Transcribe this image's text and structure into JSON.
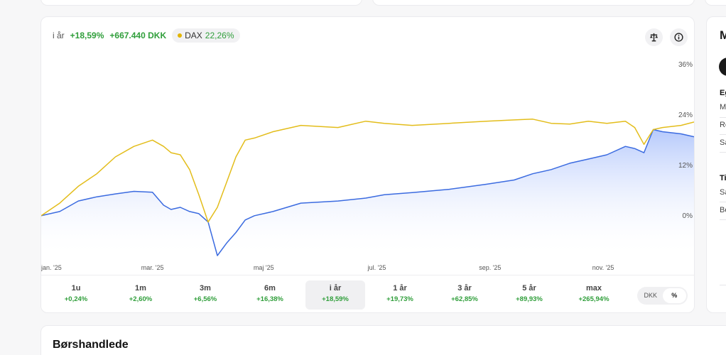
{
  "summary": {
    "period": "i år",
    "return_pct": "+18,59%",
    "return_abs": "+667.440 DKK",
    "benchmark_name": "DAX",
    "benchmark_return": "22,26%"
  },
  "chart_data": {
    "type": "line",
    "ylim": [
      -10,
      38
    ],
    "yticks": [
      "36%",
      "24%",
      "12%",
      "0%"
    ],
    "ytick_values": [
      36,
      24,
      12,
      0
    ],
    "xticks": [
      "jan. '25",
      "mar. '25",
      "maj '25",
      "jul. '25",
      "sep. '25",
      "nov. '25"
    ],
    "xtick_days": [
      0,
      60,
      120,
      181,
      242,
      303
    ],
    "x_days": [
      0,
      10,
      20,
      30,
      40,
      50,
      60,
      66,
      70,
      75,
      80,
      85,
      90,
      95,
      100,
      105,
      110,
      115,
      125,
      140,
      160,
      175,
      185,
      200,
      220,
      240,
      255,
      265,
      275,
      285,
      295,
      305,
      315,
      320,
      325,
      330,
      335,
      345,
      352
    ],
    "series": [
      {
        "name": "",
        "color": "#3b6be0",
        "values": [
          0.0,
          1.0,
          3.5,
          4.5,
          5.2,
          5.8,
          5.6,
          2.5,
          1.5,
          2.0,
          1.0,
          0.5,
          -1.5,
          -9.5,
          -6.5,
          -4.0,
          -1.0,
          0.0,
          1.0,
          3.0,
          3.5,
          4.2,
          5.0,
          5.5,
          6.3,
          7.5,
          8.5,
          10.0,
          11.0,
          12.5,
          13.5,
          14.5,
          16.5,
          16.0,
          15.0,
          20.5,
          20.0,
          19.5,
          18.8
        ]
      },
      {
        "name": "DAX",
        "color": "#e3bd1b",
        "values": [
          0.0,
          3.0,
          7.0,
          10.0,
          14.0,
          16.5,
          18.0,
          16.5,
          15.0,
          14.5,
          11.0,
          5.0,
          -1.5,
          2.0,
          8.0,
          14.0,
          18.0,
          18.5,
          20.0,
          21.5,
          21.0,
          22.5,
          22.0,
          21.5,
          22.0,
          22.5,
          22.8,
          23.0,
          22.0,
          21.8,
          22.5,
          22.0,
          22.5,
          21.0,
          17.0,
          20.5,
          21.0,
          21.5,
          22.3
        ]
      }
    ]
  },
  "periods": [
    {
      "label": "1u",
      "return": "+0,24%"
    },
    {
      "label": "1m",
      "return": "+2,60%"
    },
    {
      "label": "3m",
      "return": "+6,56%"
    },
    {
      "label": "6m",
      "return": "+16,38%"
    },
    {
      "label": "i år",
      "return": "+18,59%",
      "active": true
    },
    {
      "label": "1 år",
      "return": "+19,73%"
    },
    {
      "label": "3 år",
      "return": "+62,85%"
    },
    {
      "label": "5 år",
      "return": "+89,93%"
    },
    {
      "label": "max",
      "return": "+265,94%"
    }
  ],
  "unit_toggle": {
    "dkk": "DKK",
    "pct": "%",
    "active": "pct"
  },
  "side_panel": {
    "heading": "M",
    "group1_title": "Eg",
    "group1_items": [
      "M",
      "Re",
      "Sa"
    ],
    "group2_title": "Ti",
    "group2_items": [
      "Sa",
      "Be"
    ]
  },
  "trades_section": {
    "title": "Børshandlede"
  },
  "icons": {
    "scale": "scale-icon",
    "info": "info-icon"
  }
}
